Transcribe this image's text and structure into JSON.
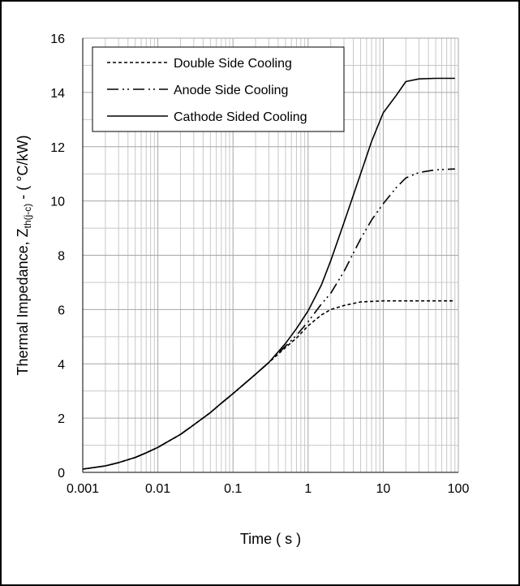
{
  "chart_data": {
    "type": "line",
    "xscale": "log",
    "xlim": [
      0.001,
      100
    ],
    "ylim": [
      0,
      16
    ],
    "x_ticks": [
      "0.001",
      "0.01",
      "0.1",
      "1",
      "10",
      "100"
    ],
    "y_ticks": [
      "0",
      "2",
      "4",
      "6",
      "8",
      "10",
      "12",
      "14",
      "16"
    ],
    "xlabel": "Time ( s )",
    "ylabel": {
      "main": "Thermal Impedance, Z",
      "sub": "th(j-c)",
      "tail": " - ( °C/kW)"
    },
    "grid": "major and minor, both axes",
    "legend_position": "top-left",
    "series": [
      {
        "name": "Double Side Cooling",
        "style": "dashed",
        "color": "#000000",
        "points": [
          [
            0.001,
            0.12
          ],
          [
            0.002,
            0.24
          ],
          [
            0.003,
            0.36
          ],
          [
            0.005,
            0.55
          ],
          [
            0.007,
            0.72
          ],
          [
            0.01,
            0.92
          ],
          [
            0.02,
            1.4
          ],
          [
            0.03,
            1.75
          ],
          [
            0.05,
            2.2
          ],
          [
            0.07,
            2.55
          ],
          [
            0.1,
            2.9
          ],
          [
            0.2,
            3.62
          ],
          [
            0.3,
            4.05
          ],
          [
            0.5,
            4.6
          ],
          [
            0.7,
            4.95
          ],
          [
            1,
            5.4
          ],
          [
            1.5,
            5.8
          ],
          [
            2,
            6.0
          ],
          [
            3,
            6.15
          ],
          [
            5,
            6.28
          ],
          [
            10,
            6.32
          ],
          [
            20,
            6.32
          ],
          [
            50,
            6.32
          ],
          [
            90,
            6.32
          ]
        ]
      },
      {
        "name": "Anode Side Cooling",
        "style": "dash-dot-dot",
        "color": "#000000",
        "points": [
          [
            0.001,
            0.12
          ],
          [
            0.002,
            0.24
          ],
          [
            0.003,
            0.36
          ],
          [
            0.005,
            0.55
          ],
          [
            0.007,
            0.72
          ],
          [
            0.01,
            0.92
          ],
          [
            0.02,
            1.4
          ],
          [
            0.03,
            1.75
          ],
          [
            0.05,
            2.2
          ],
          [
            0.07,
            2.55
          ],
          [
            0.1,
            2.9
          ],
          [
            0.2,
            3.62
          ],
          [
            0.3,
            4.05
          ],
          [
            0.5,
            4.65
          ],
          [
            0.7,
            5.05
          ],
          [
            1,
            5.55
          ],
          [
            1.5,
            6.2
          ],
          [
            2,
            6.6
          ],
          [
            3,
            7.4
          ],
          [
            5,
            8.6
          ],
          [
            7,
            9.3
          ],
          [
            10,
            9.9
          ],
          [
            15,
            10.5
          ],
          [
            20,
            10.85
          ],
          [
            30,
            11.05
          ],
          [
            50,
            11.15
          ],
          [
            90,
            11.18
          ]
        ]
      },
      {
        "name": "Cathode Sided Cooling",
        "style": "solid",
        "color": "#000000",
        "points": [
          [
            0.001,
            0.12
          ],
          [
            0.002,
            0.24
          ],
          [
            0.003,
            0.36
          ],
          [
            0.005,
            0.55
          ],
          [
            0.007,
            0.72
          ],
          [
            0.01,
            0.92
          ],
          [
            0.02,
            1.4
          ],
          [
            0.03,
            1.75
          ],
          [
            0.05,
            2.2
          ],
          [
            0.07,
            2.55
          ],
          [
            0.1,
            2.9
          ],
          [
            0.2,
            3.62
          ],
          [
            0.3,
            4.05
          ],
          [
            0.5,
            4.75
          ],
          [
            0.7,
            5.3
          ],
          [
            1,
            5.95
          ],
          [
            1.5,
            6.9
          ],
          [
            2,
            7.8
          ],
          [
            3,
            9.2
          ],
          [
            5,
            11.0
          ],
          [
            7,
            12.2
          ],
          [
            10,
            13.25
          ],
          [
            15,
            13.9
          ],
          [
            20,
            14.4
          ],
          [
            30,
            14.5
          ],
          [
            50,
            14.52
          ],
          [
            90,
            14.52
          ]
        ]
      }
    ]
  }
}
